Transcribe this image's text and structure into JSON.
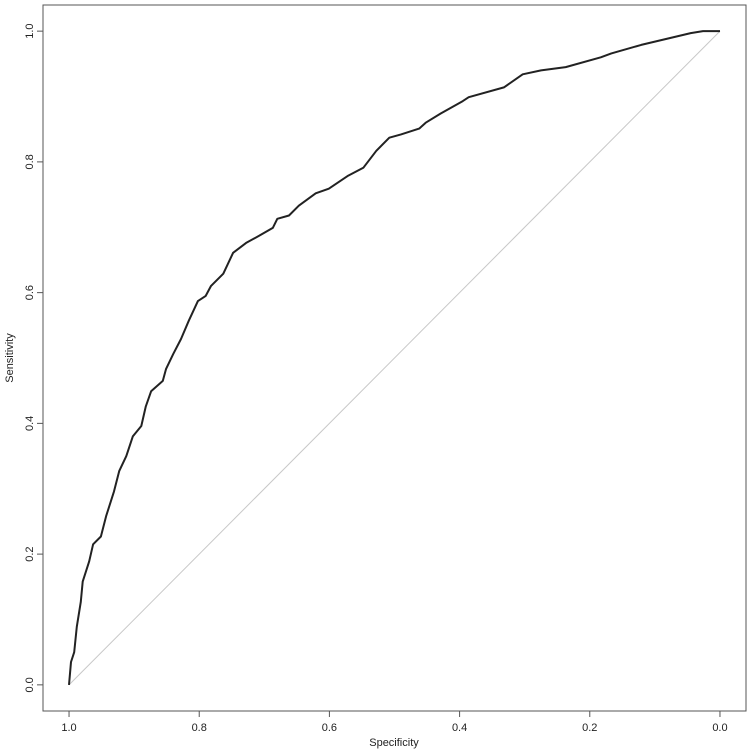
{
  "chart_data": {
    "type": "line",
    "x_label": "Specificity",
    "y_label": "Sensitivity",
    "x": [
      1.0,
      0.997,
      0.992,
      0.988,
      0.982,
      0.979,
      0.969,
      0.963,
      0.951,
      0.943,
      0.931,
      0.923,
      0.912,
      0.902,
      0.889,
      0.882,
      0.874,
      0.856,
      0.851,
      0.84,
      0.828,
      0.816,
      0.802,
      0.79,
      0.782,
      0.763,
      0.748,
      0.728,
      0.708,
      0.687,
      0.68,
      0.662,
      0.647,
      0.621,
      0.601,
      0.571,
      0.548,
      0.528,
      0.508,
      0.49,
      0.462,
      0.452,
      0.429,
      0.395,
      0.386,
      0.332,
      0.303,
      0.275,
      0.237,
      0.183,
      0.167,
      0.121,
      0.045,
      0.026,
      0.0
    ],
    "series": [
      {
        "color": "#222222",
        "values": [
          0.0,
          0.035,
          0.05,
          0.089,
          0.127,
          0.158,
          0.189,
          0.215,
          0.227,
          0.258,
          0.296,
          0.327,
          0.35,
          0.38,
          0.396,
          0.426,
          0.449,
          0.465,
          0.483,
          0.506,
          0.529,
          0.557,
          0.587,
          0.595,
          0.61,
          0.629,
          0.661,
          0.676,
          0.687,
          0.699,
          0.713,
          0.718,
          0.733,
          0.752,
          0.759,
          0.779,
          0.791,
          0.817,
          0.837,
          0.842,
          0.851,
          0.86,
          0.874,
          0.893,
          0.899,
          0.914,
          0.934,
          0.94,
          0.945,
          0.96,
          0.966,
          0.979,
          0.997,
          1.0,
          1.0
        ]
      }
    ],
    "reference": {
      "x": [
        1,
        0
      ],
      "values": [
        0,
        1
      ],
      "color": "#c8c8c8"
    },
    "xlim": [
      1.04,
      -0.04
    ],
    "ylim": [
      -0.04,
      1.04
    ],
    "xticks": [
      {
        "value": 1,
        "label": "1.0"
      },
      0.8,
      0.6,
      0.4,
      0.2,
      {
        "value": 0,
        "label": "0.0"
      }
    ],
    "yticks": [
      {
        "value": 0,
        "label": "0.0"
      },
      0.2,
      0.4,
      0.6,
      0.8,
      {
        "value": 1,
        "label": "1.0"
      }
    ]
  }
}
